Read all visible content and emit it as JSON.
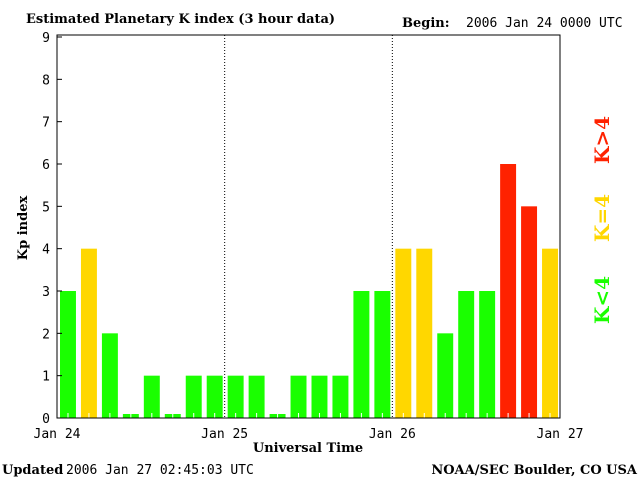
{
  "chart_data": {
    "type": "bar",
    "title": "Estimated Planetary K index (3 hour data)",
    "begin_label": "Begin:",
    "begin_value": "2006 Jan 24 0000 UTC",
    "xlabel": "Universal Time",
    "ylabel": "Kp index",
    "ylim": [
      0,
      9
    ],
    "yticks": [
      "0",
      "1",
      "2",
      "3",
      "4",
      "5",
      "6",
      "7",
      "8",
      "9"
    ],
    "xticks": [
      "Jan 24",
      "Jan 25",
      "Jan 26",
      "Jan 27"
    ],
    "values": [
      3,
      4,
      2,
      0,
      1,
      0,
      1,
      1,
      1,
      1,
      0,
      1,
      1,
      1,
      3,
      3,
      4,
      4,
      2,
      3,
      3,
      6,
      5,
      4
    ],
    "legend": [
      {
        "label": "K<4",
        "color": "#1aff00"
      },
      {
        "label": "K=4",
        "color": "#ffd700"
      },
      {
        "label": "K>4",
        "color": "#ff2200"
      }
    ],
    "colors": {
      "low": "#1aff00",
      "eq": "#ffd700",
      "high": "#ff2200"
    }
  },
  "footer": {
    "updated_label": "Updated",
    "updated_value": "2006 Jan 27 02:45:03 UTC",
    "source": "NOAA/SEC Boulder, CO USA"
  }
}
